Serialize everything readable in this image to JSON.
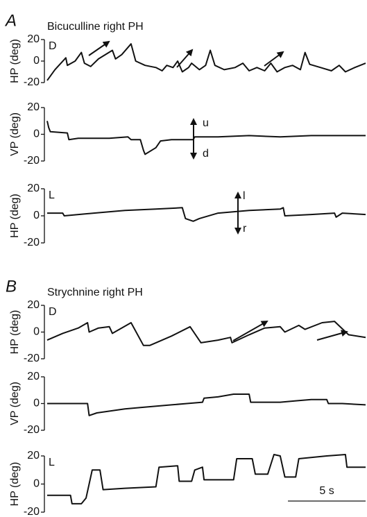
{
  "chart_data": [
    {
      "type": "line",
      "panel": "A",
      "title": "Bicuculline right PH",
      "label": "D",
      "ylabel": "HP (deg)",
      "ylim": [
        -20,
        20
      ],
      "yticks": [
        -20,
        0,
        20
      ],
      "xlim": [
        0,
        20.5
      ],
      "x": [
        0,
        0.5,
        1.2,
        1.3,
        1.8,
        2.2,
        2.4,
        2.8,
        3.3,
        4.2,
        4.4,
        4.8,
        5.4,
        5.7,
        6.3,
        7.0,
        7.4,
        7.7,
        8.1,
        8.4,
        8.7,
        9.1,
        9.3,
        9.8,
        10.2,
        10.5,
        10.8,
        11.4,
        12.1,
        12.6,
        13.0,
        13.5,
        14.0,
        14.4,
        14.8,
        15.3,
        15.8,
        16.3,
        16.6,
        16.9,
        17.6,
        18.3,
        18.8,
        19.2,
        19.8,
        20.5
      ],
      "values": [
        -18,
        -8,
        3,
        -4,
        0,
        8,
        -2,
        -5,
        2,
        10,
        2,
        6,
        16,
        0,
        -4,
        -6,
        -9,
        -4,
        -6,
        0,
        -10,
        -6,
        -2,
        -8,
        -4,
        10,
        -4,
        -8,
        -6,
        -2,
        -9,
        -6,
        -9,
        -2,
        -10,
        -6,
        -4,
        -8,
        8,
        -3,
        -6,
        -9,
        -4,
        -10,
        -6,
        -2
      ]
    },
    {
      "type": "line",
      "ylabel": "VP (deg)",
      "ylim": [
        -20,
        20
      ],
      "yticks": [
        -20,
        0,
        20
      ],
      "xlim": [
        0,
        20.5
      ],
      "annotations": [
        "u",
        "d"
      ],
      "x": [
        0,
        0.1,
        0.2,
        1.3,
        1.4,
        2.0,
        4.0,
        5.2,
        5.4,
        6.0,
        6.2,
        6.3,
        7.0,
        7.3,
        8.0,
        9.4,
        9.5,
        11,
        13,
        15,
        17,
        19,
        20.5
      ],
      "values": [
        10,
        5,
        2,
        1,
        -4,
        -3,
        -3,
        -2,
        -4,
        -4,
        -12,
        -15,
        -10,
        -5,
        -4,
        -4,
        -2,
        -2,
        -1,
        -2,
        -1,
        -1,
        -1
      ]
    },
    {
      "type": "line",
      "label": "L",
      "ylabel": "HP (deg)",
      "ylim": [
        -20,
        20
      ],
      "yticks": [
        -20,
        0,
        20
      ],
      "xlim": [
        0,
        20.5
      ],
      "annotations": [
        "l",
        "r"
      ],
      "x": [
        0,
        1.0,
        1.1,
        3,
        5,
        7,
        8.7,
        8.9,
        9.4,
        9.8,
        11,
        13,
        15,
        15.2,
        15.3,
        17,
        18.5,
        18.6,
        19,
        20.5
      ],
      "values": [
        2,
        2,
        0,
        2,
        4,
        5,
        6,
        -2,
        -4,
        -2,
        2,
        4,
        5,
        6,
        0,
        1,
        2,
        -1,
        2,
        1
      ]
    },
    {
      "type": "line",
      "panel": "B",
      "title": "Strychnine right PH",
      "label": "D",
      "ylabel": "HP (deg)",
      "ylim": [
        -20,
        20
      ],
      "yticks": [
        -20,
        0,
        20
      ],
      "xlim": [
        0,
        20.5
      ],
      "x": [
        0,
        1,
        2.0,
        2.6,
        2.7,
        3.3,
        4.0,
        4.2,
        5.4,
        6.2,
        6.6,
        8,
        9.2,
        9.9,
        11,
        11.8,
        11.9,
        13,
        14,
        15,
        15.3,
        16.2,
        16.6,
        17.7,
        18.5,
        19.4,
        20.5
      ],
      "values": [
        -6,
        -1,
        3,
        7,
        0,
        3,
        4,
        -1,
        7,
        -10,
        -10,
        -3,
        4,
        -8,
        -6,
        -4,
        -8,
        -2,
        3,
        4,
        0,
        5,
        2,
        7,
        8,
        -2,
        -4
      ]
    },
    {
      "type": "line",
      "ylabel": "VP (deg)",
      "ylim": [
        -20,
        20
      ],
      "yticks": [
        -20,
        0,
        20
      ],
      "xlim": [
        0,
        20.5
      ],
      "x": [
        0,
        1.5,
        2.6,
        2.7,
        3.2,
        5,
        6,
        8,
        9,
        10,
        10.1,
        11,
        12,
        13,
        13.1,
        15,
        16,
        17,
        18,
        18.1,
        19,
        20.5
      ],
      "values": [
        0,
        0,
        0,
        -9,
        -7,
        -4,
        -3,
        -1,
        0,
        1,
        4,
        5,
        7,
        7,
        1,
        1,
        2,
        3,
        3,
        0,
        0,
        -1
      ]
    },
    {
      "type": "line",
      "label": "L",
      "ylabel": "HP (deg)",
      "ylim": [
        -20,
        20
      ],
      "yticks": [
        -20,
        0,
        20
      ],
      "xlim": [
        0,
        20.5
      ],
      "scale_bar": {
        "value": 5,
        "label": "5 s"
      },
      "x": [
        0,
        1.5,
        1.6,
        2.2,
        2.5,
        2.8,
        2.9,
        3.4,
        3.6,
        5,
        7,
        7.2,
        8.4,
        8.5,
        9.3,
        9.5,
        10.0,
        10.1,
        12,
        12.2,
        13.2,
        13.4,
        14.2,
        14.6,
        15.0,
        15.3,
        16.0,
        16.2,
        18,
        19.2,
        19.3,
        20.5
      ],
      "values": [
        -8,
        -8,
        -14,
        -14,
        -10,
        5,
        10,
        10,
        -4,
        -3,
        -2,
        12,
        13,
        2,
        2,
        10,
        12,
        3,
        3,
        18,
        18,
        7,
        7,
        21,
        20,
        5,
        5,
        18,
        20,
        21,
        12,
        12
      ]
    }
  ]
}
